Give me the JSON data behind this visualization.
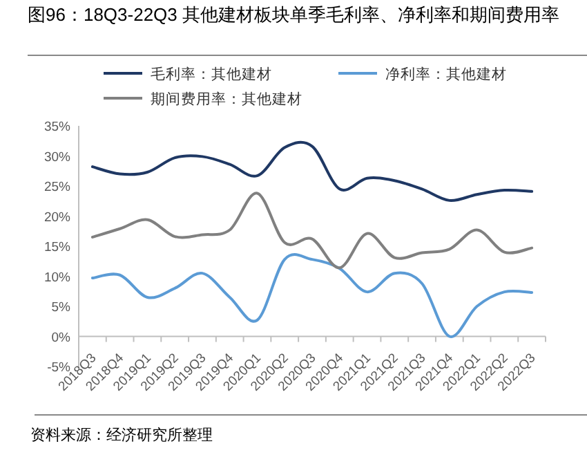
{
  "chart_data": {
    "type": "line",
    "title": "图96：18Q3-22Q3 其他建材板块单季毛利率、净利率和期间费用率",
    "categories": [
      "2018Q3",
      "2018Q4",
      "2019Q1",
      "2019Q2",
      "2019Q3",
      "2019Q4",
      "2020Q1",
      "2020Q2",
      "2020Q3",
      "2020Q4",
      "2021Q1",
      "2021Q2",
      "2021Q3",
      "2021Q4",
      "2022Q1",
      "2022Q2",
      "2022Q3"
    ],
    "series": [
      {
        "name": "毛利率：其他建材",
        "color": "#1f3864",
        "values": [
          28.2,
          27.0,
          27.3,
          29.7,
          29.9,
          28.6,
          26.7,
          31.4,
          31.6,
          24.5,
          26.3,
          25.9,
          24.5,
          22.6,
          23.6,
          24.3,
          24.1
        ]
      },
      {
        "name": "净利率：其他建材",
        "color": "#5b9bd5",
        "values": [
          9.7,
          10.2,
          6.5,
          8.0,
          10.5,
          6.5,
          2.7,
          12.8,
          12.8,
          11.3,
          7.4,
          10.5,
          8.8,
          0.0,
          5.0,
          7.4,
          7.3
        ]
      },
      {
        "name": "期间费用率：其他建材",
        "color": "#808080",
        "values": [
          16.5,
          17.9,
          19.4,
          16.6,
          16.9,
          17.7,
          23.8,
          15.6,
          16.2,
          11.4,
          17.1,
          13.1,
          13.9,
          14.5,
          17.7,
          14.0,
          14.7
        ]
      }
    ],
    "ylim": [
      -5,
      35
    ],
    "yticks": [
      {
        "value": -5,
        "label": "-5%"
      },
      {
        "value": 0,
        "label": "0%"
      },
      {
        "value": 5,
        "label": "5%"
      },
      {
        "value": 10,
        "label": "10%"
      },
      {
        "value": 15,
        "label": "15%"
      },
      {
        "value": 20,
        "label": "20%"
      },
      {
        "value": 25,
        "label": "25%"
      },
      {
        "value": 30,
        "label": "30%"
      },
      {
        "value": 35,
        "label": "35%"
      }
    ],
    "grid": false,
    "legend": "top",
    "marker": "none",
    "line_style": "solid",
    "annotations": [
      "资料来源：经济研究所整理"
    ]
  }
}
